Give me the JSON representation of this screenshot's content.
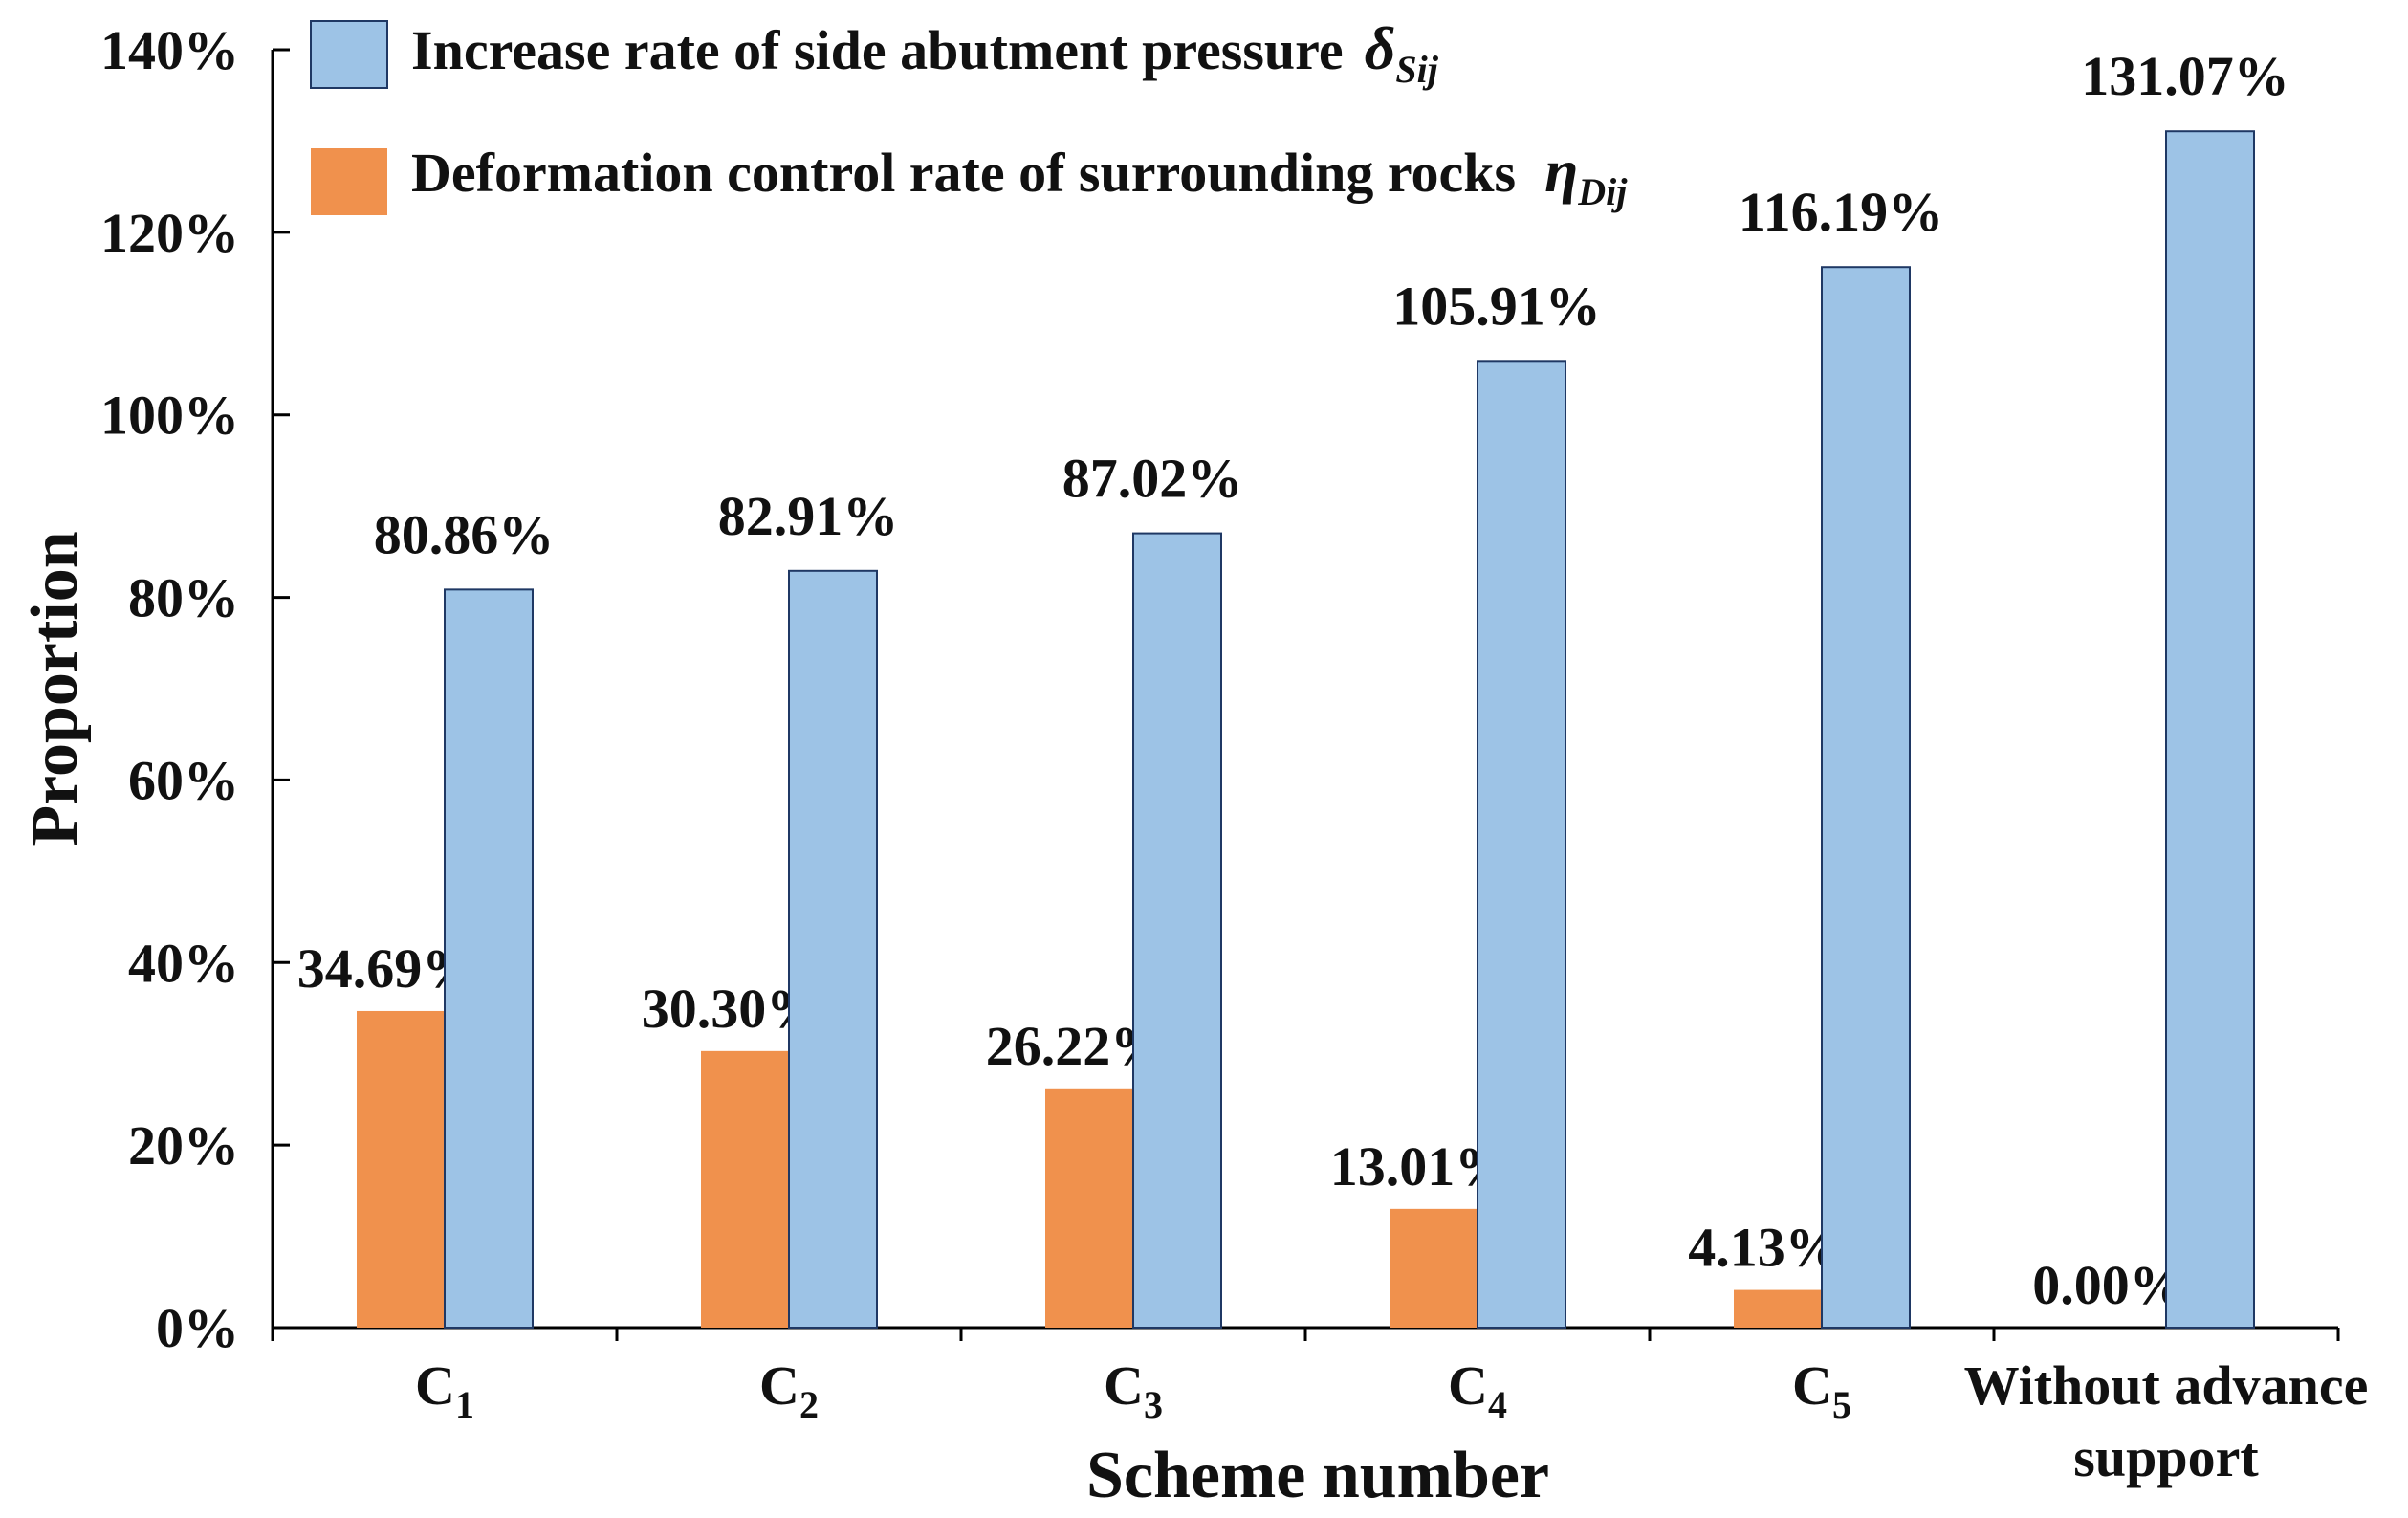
{
  "chart_data": {
    "type": "bar",
    "title": "",
    "xlabel": "Scheme number",
    "ylabel": "Proportion",
    "ylim": [
      0,
      140
    ],
    "y_tick_step": 20,
    "y_tick_suffix": "%",
    "grid": false,
    "legend_position": "top-left",
    "categories": [
      {
        "base": "C",
        "sub": "1"
      },
      {
        "base": "C",
        "sub": "2"
      },
      {
        "base": "C",
        "sub": "3"
      },
      {
        "base": "C",
        "sub": "4"
      },
      {
        "base": "C",
        "sub": "5"
      },
      {
        "base": "Without advance",
        "line2": "support"
      }
    ],
    "series": [
      {
        "name": "Deformation control rate of surrounding rocks",
        "symbol": "η",
        "symbol_sub": "Dij",
        "color": "#F0914D",
        "values": [
          34.69,
          30.3,
          26.22,
          13.01,
          4.13,
          0.0
        ],
        "labels": [
          "34.69%",
          "30.30%",
          "26.22%",
          "13.01%",
          "4.13%",
          "0.00%"
        ]
      },
      {
        "name": "Increase rate of side abutment pressure",
        "symbol": "δ",
        "symbol_sub": "Sij",
        "color": "#9DC3E6",
        "values": [
          80.86,
          82.91,
          87.02,
          105.91,
          116.19,
          131.07
        ],
        "labels": [
          "80.86%",
          "82.91%",
          "87.02%",
          "105.91%",
          "116.19%",
          "131.07%"
        ]
      }
    ]
  }
}
